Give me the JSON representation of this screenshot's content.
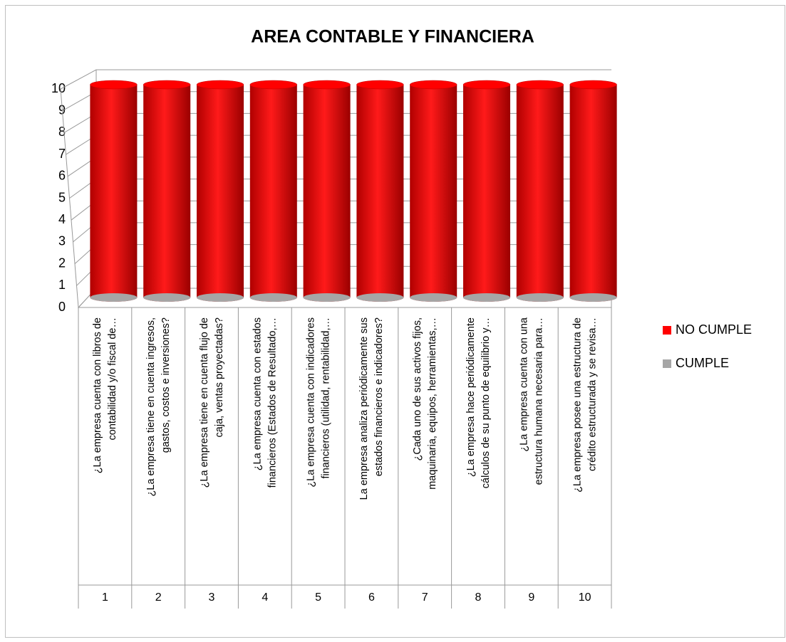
{
  "chart_data": {
    "type": "bar3d",
    "title": "AREA CONTABLE Y FINANCIERA",
    "categories": [
      "1",
      "2",
      "3",
      "4",
      "5",
      "6",
      "7",
      "8",
      "9",
      "10"
    ],
    "category_questions": [
      [
        "¿La empresa cuenta con libros de",
        "contabilidad y/o fiscal de…"
      ],
      [
        "¿La empresa tiene en cuenta ingresos,",
        "gastos, costos e inversiones?"
      ],
      [
        "¿La empresa tiene en cuenta flujo de",
        "caja, ventas proyectadas?"
      ],
      [
        "¿La empresa cuenta con estados",
        "financieros (Estados de Resultado,…"
      ],
      [
        "¿La empresa cuenta con indicadores",
        "financieros (utilidad, rentabilidad,…"
      ],
      [
        "La empresa analiza periódicamente sus",
        "estados financieros e indicadores?"
      ],
      [
        "¿Cada uno de sus activos fijos,",
        "maquinaria, equipos, herramientas,…"
      ],
      [
        "¿La empresa hace periódicamente",
        "cálculos de su punto de equilibrio y…"
      ],
      [
        "¿La empresa cuenta con una",
        "estructura humana necesaria  para…"
      ],
      [
        "¿La empresa posee una estructura de",
        "crédito estructurada y se revisa…"
      ]
    ],
    "series": [
      {
        "name": "NO CUMPLE",
        "color": "#ff0000",
        "values": [
          10,
          10,
          10,
          10,
          10,
          10,
          10,
          10,
          10,
          10
        ]
      },
      {
        "name": "CUMPLE",
        "color": "#a6a6a6",
        "values": [
          0,
          0,
          0,
          0,
          0,
          0,
          0,
          0,
          0,
          0
        ]
      }
    ],
    "ylim": [
      0,
      10
    ],
    "yticks": [
      0,
      1,
      2,
      3,
      4,
      5,
      6,
      7,
      8,
      9,
      10
    ],
    "grid": true,
    "legend": "right"
  }
}
